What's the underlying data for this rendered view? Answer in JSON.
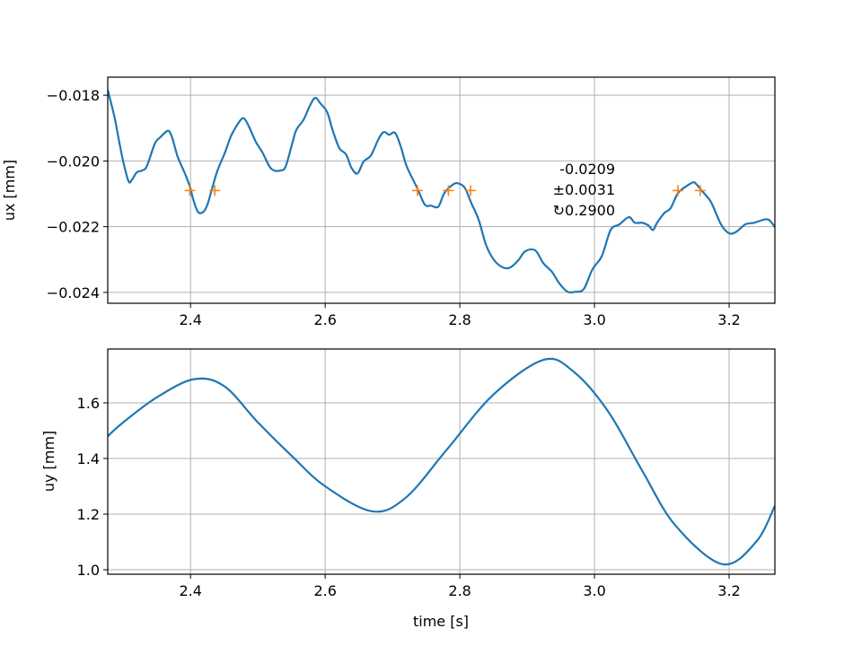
{
  "chart_data": [
    {
      "type": "line",
      "ylabel": "ux [mm]",
      "xlabel": "",
      "xlim": [
        2.277,
        3.268
      ],
      "ylim": [
        -0.02433,
        -0.01745
      ],
      "grid": true,
      "xticks": [
        2.4,
        2.6,
        2.8,
        3.0,
        3.2
      ],
      "xtick_labels": [
        "2.4",
        "2.6",
        "2.8",
        "3.0",
        "3.2"
      ],
      "yticks": [
        -0.018,
        -0.02,
        -0.022,
        -0.024
      ],
      "ytick_labels": [
        "−0.018",
        "−0.020",
        "−0.022",
        "−0.024"
      ],
      "line_color": "#1f77b4",
      "marker_color": "#ff7f0e",
      "series": [
        {
          "x": [
            2.277,
            2.287,
            2.292,
            2.3,
            2.308,
            2.313,
            2.32,
            2.328,
            2.335,
            2.347,
            2.355,
            2.363,
            2.368,
            2.373,
            2.381,
            2.391,
            2.399,
            2.404,
            2.411,
            2.419,
            2.425,
            2.432,
            2.44,
            2.451,
            2.461,
            2.475,
            2.481,
            2.488,
            2.497,
            2.507,
            2.517,
            2.524,
            2.533,
            2.541,
            2.551,
            2.557,
            2.568,
            2.577,
            2.585,
            2.593,
            2.603,
            2.611,
            2.621,
            2.631,
            2.639,
            2.648,
            2.657,
            2.668,
            2.679,
            2.687,
            2.695,
            2.704,
            2.713,
            2.721,
            2.737,
            2.748,
            2.757,
            2.768,
            2.777,
            2.791,
            2.8,
            2.808,
            2.817,
            2.828,
            2.839,
            2.851,
            2.864,
            2.875,
            2.887,
            2.897,
            2.912,
            2.924,
            2.937,
            2.948,
            2.96,
            2.972,
            2.984,
            2.997,
            3.011,
            3.024,
            3.037,
            3.051,
            3.06,
            3.071,
            3.08,
            3.087,
            3.093,
            3.104,
            3.113,
            3.124,
            3.137,
            3.147,
            3.151,
            3.16,
            3.173,
            3.188,
            3.2,
            3.211,
            3.224,
            3.237,
            3.251,
            3.259,
            3.268
          ],
          "y": [
            -0.01784,
            -0.01866,
            -0.0192,
            -0.02002,
            -0.02062,
            -0.02057,
            -0.02035,
            -0.02029,
            -0.02016,
            -0.01947,
            -0.01928,
            -0.01912,
            -0.01909,
            -0.01931,
            -0.01988,
            -0.02035,
            -0.02078,
            -0.02117,
            -0.02155,
            -0.02155,
            -0.02133,
            -0.02084,
            -0.02029,
            -0.01975,
            -0.0192,
            -0.01874,
            -0.01874,
            -0.01901,
            -0.01942,
            -0.01975,
            -0.02016,
            -0.02029,
            -0.02029,
            -0.02018,
            -0.01947,
            -0.01906,
            -0.01874,
            -0.01833,
            -0.01808,
            -0.01825,
            -0.01852,
            -0.01906,
            -0.01961,
            -0.0198,
            -0.02021,
            -0.02038,
            -0.02002,
            -0.01983,
            -0.01934,
            -0.01912,
            -0.0192,
            -0.01915,
            -0.01961,
            -0.02016,
            -0.02084,
            -0.02133,
            -0.02136,
            -0.02139,
            -0.02098,
            -0.0207,
            -0.0207,
            -0.02084,
            -0.02128,
            -0.02179,
            -0.02256,
            -0.02302,
            -0.02324,
            -0.02324,
            -0.02302,
            -0.02275,
            -0.02272,
            -0.02311,
            -0.02338,
            -0.02373,
            -0.02398,
            -0.02398,
            -0.0239,
            -0.0233,
            -0.02289,
            -0.0221,
            -0.02193,
            -0.02171,
            -0.02188,
            -0.02188,
            -0.02196,
            -0.0221,
            -0.02188,
            -0.02158,
            -0.02144,
            -0.02098,
            -0.02076,
            -0.02065,
            -0.0207,
            -0.02092,
            -0.02125,
            -0.02193,
            -0.0222,
            -0.02215,
            -0.02193,
            -0.02188,
            -0.02179,
            -0.02179,
            -0.02201
          ]
        }
      ],
      "markers": {
        "x": [
          2.399,
          2.436,
          2.737,
          2.783,
          2.816,
          3.124,
          3.157
        ],
        "y": [
          -0.0209,
          -0.0209,
          -0.0209,
          -0.0209,
          -0.0209,
          -0.0209,
          -0.0209
        ],
        "symbol": "+"
      },
      "annotation": {
        "lines": [
          "-0.0209",
          "±0.0031",
          "↻0.2900"
        ]
      }
    },
    {
      "type": "line",
      "ylabel": "uy [mm]",
      "xlabel": "time [s]",
      "xlim": [
        2.277,
        3.268
      ],
      "ylim": [
        0.984,
        1.7935
      ],
      "grid": true,
      "xticks": [
        2.4,
        2.6,
        2.8,
        3.0,
        3.2
      ],
      "xtick_labels": [
        "2.4",
        "2.6",
        "2.8",
        "3.0",
        "3.2"
      ],
      "yticks": [
        1.6,
        1.4,
        1.2,
        1.0
      ],
      "ytick_labels": [
        "1.6",
        "1.4",
        "1.2",
        "1.0"
      ],
      "line_color": "#1f77b4",
      "series": [
        {
          "x": [
            2.277,
            2.3,
            2.35,
            2.405,
            2.45,
            2.5,
            2.55,
            2.6,
            2.67,
            2.72,
            2.78,
            2.85,
            2.925,
            2.97,
            3.02,
            3.07,
            3.12,
            3.19,
            3.24,
            3.268
          ],
          "y": [
            1.48,
            1.53,
            1.62,
            1.685,
            1.66,
            1.53,
            1.41,
            1.3,
            1.21,
            1.26,
            1.43,
            1.63,
            1.755,
            1.71,
            1.57,
            1.36,
            1.16,
            1.02,
            1.1,
            1.23
          ]
        }
      ]
    }
  ]
}
